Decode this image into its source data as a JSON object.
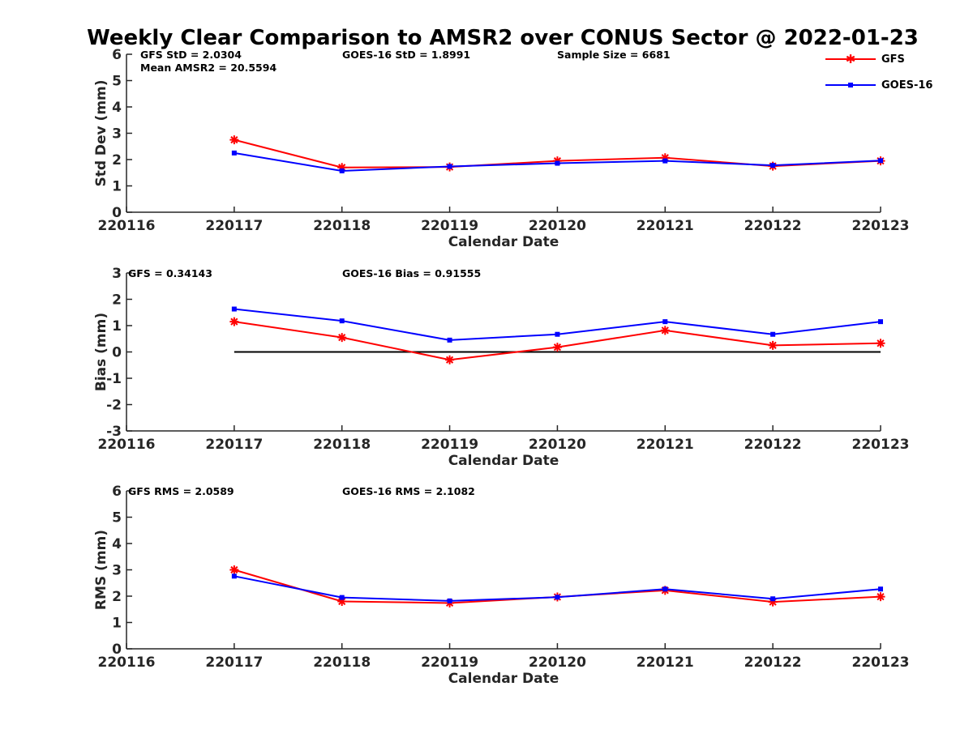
{
  "chart_data": {
    "title": "Weekly Clear Comparison to AMSR2 over CONUS Sector @ 2022-01-23",
    "legend": {
      "placement": "top-right",
      "entries": [
        {
          "name": "GFS",
          "color": "#ff0000",
          "marker": "asterisk"
        },
        {
          "name": "GOES-16",
          "color": "#0000ff",
          "marker": "square"
        }
      ]
    },
    "x_ticks": [
      "220116",
      "220117",
      "220118",
      "220119",
      "220120",
      "220121",
      "220122",
      "220123"
    ],
    "panels": [
      {
        "id": "std",
        "type": "line",
        "ylabel": "Std Dev (mm)",
        "xlabel": "Calendar Date",
        "ylim": [
          0,
          6
        ],
        "yticks": [
          "0",
          "1",
          "2",
          "3",
          "4",
          "5",
          "6"
        ],
        "annotations": [
          "GFS StD = 2.0304",
          "GOES-16 StD = 1.8991",
          "Sample Size = 6681",
          "Mean AMSR2 = 20.5594"
        ],
        "x": [
          "220117",
          "220118",
          "220119",
          "220120",
          "220121",
          "220122",
          "220123"
        ],
        "series": [
          {
            "name": "GFS",
            "values": [
              2.75,
              1.7,
              1.72,
              1.95,
              2.07,
              1.75,
              1.95
            ]
          },
          {
            "name": "GOES-16",
            "values": [
              2.25,
              1.57,
              1.74,
              1.86,
              1.95,
              1.78,
              1.96
            ]
          }
        ]
      },
      {
        "id": "bias",
        "type": "line",
        "ylabel": "Bias (mm)",
        "xlabel": "Calendar Date",
        "ylim": [
          -3,
          3
        ],
        "yticks": [
          "-3",
          "-2",
          "-1",
          "0",
          "1",
          "2",
          "3"
        ],
        "annotations": [
          "GFS = 0.34143",
          "GOES-16 Bias  = 0.91555"
        ],
        "reference_line": 0,
        "x": [
          "220117",
          "220118",
          "220119",
          "220120",
          "220121",
          "220122",
          "220123"
        ],
        "series": [
          {
            "name": "GFS",
            "values": [
              1.15,
              0.55,
              -0.3,
              0.18,
              0.82,
              0.25,
              0.33
            ]
          },
          {
            "name": "GOES-16",
            "values": [
              1.63,
              1.18,
              0.45,
              0.67,
              1.15,
              0.67,
              1.15
            ]
          }
        ]
      },
      {
        "id": "rms",
        "type": "line",
        "ylabel": "RMS (mm)",
        "xlabel": "Calendar Date",
        "ylim": [
          0,
          6
        ],
        "yticks": [
          "0",
          "1",
          "2",
          "3",
          "4",
          "5",
          "6"
        ],
        "annotations": [
          "GFS RMS = 2.0589",
          "GOES-16 RMS = 2.1082"
        ],
        "x": [
          "220117",
          "220118",
          "220119",
          "220120",
          "220121",
          "220122",
          "220123"
        ],
        "series": [
          {
            "name": "GFS",
            "values": [
              3.0,
              1.8,
              1.74,
              1.97,
              2.22,
              1.78,
              1.98
            ]
          },
          {
            "name": "GOES-16",
            "values": [
              2.76,
              1.95,
              1.82,
              1.96,
              2.27,
              1.9,
              2.27
            ]
          }
        ]
      }
    ]
  }
}
